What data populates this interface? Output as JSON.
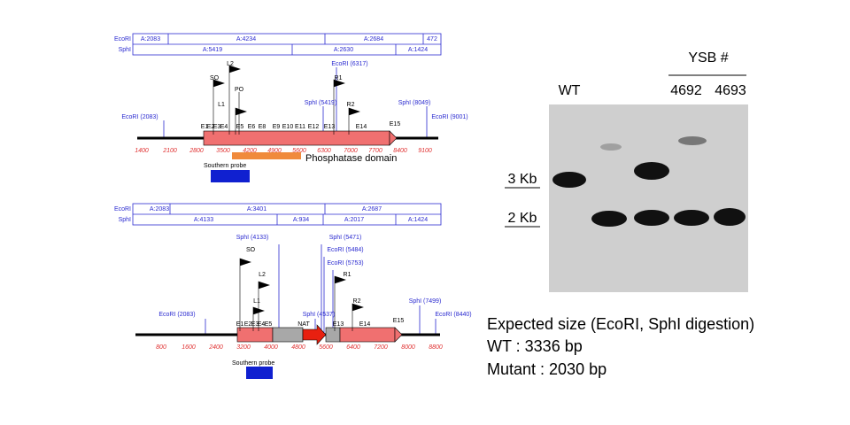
{
  "top_map": {
    "enzymes": [
      "EcoRI",
      "SphI"
    ],
    "ecori_segments": [
      "A:2083",
      "A:4234",
      "A:2684",
      "472"
    ],
    "sphi_segments": [
      "A:5419",
      "A:2630",
      "A:1424"
    ],
    "sites": [
      "EcoRI (2083)",
      "SphI (5419)",
      "EcoRI (6317)",
      "SphI (8049)",
      "EcoRI (9001)"
    ],
    "primers": [
      "SO",
      "L2",
      "PO",
      "L1",
      "R1",
      "R2"
    ],
    "exons": [
      "E1",
      "E2",
      "E3",
      "E4",
      "E5",
      "E6",
      "E8",
      "E9",
      "E10",
      "E11",
      "E12",
      "E13",
      "E14",
      "E15"
    ],
    "scale": [
      "1400",
      "2100",
      "2800",
      "3500",
      "4200",
      "4900",
      "5600",
      "6300",
      "7000",
      "7700",
      "8400",
      "9100"
    ],
    "domain": "Phosphatase domain",
    "probe": "Southern probe"
  },
  "bottom_map": {
    "enzymes": [
      "EcoRI",
      "SphI"
    ],
    "ecori_segments": [
      "A:2083",
      "A:3401",
      "A:2687"
    ],
    "sphi_segments": [
      "A:4133",
      "A:934",
      "A:2017",
      "A:1424"
    ],
    "sites": [
      "EcoRI (2083)",
      "SphI (4133)",
      "SphI (5471)",
      "EcoRI (5484)",
      "EcoRI (5753)",
      "SphI (4537)",
      "SphI (7499)",
      "EcoRI (8440)"
    ],
    "primers": [
      "SO",
      "L2",
      "L1",
      "R1",
      "R2"
    ],
    "exons": [
      "E1",
      "E2",
      "E3",
      "E4",
      "E5",
      "NAT",
      "E13",
      "E14",
      "E15"
    ],
    "scale": [
      "800",
      "1600",
      "2400",
      "3200",
      "4000",
      "4800",
      "5600",
      "6400",
      "7200",
      "8000",
      "8800"
    ],
    "probe": "Southern probe"
  },
  "gel": {
    "group": "YSB #",
    "lanes": [
      "WT",
      "4692",
      "4693"
    ],
    "markers": [
      "3 Kb",
      "2 Kb"
    ]
  },
  "caption": [
    "Expected size (EcoRI, SphI digestion)",
    "WT : 3336 bp",
    "Mutant : 2030 bp"
  ]
}
